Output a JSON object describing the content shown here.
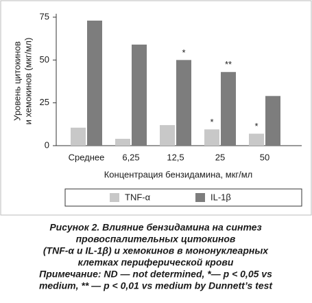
{
  "chart_data": {
    "type": "bar",
    "ylabel": [
      "Уровень цитокинов",
      "и хемокинов (мкг/мл)"
    ],
    "xlabel": "Концентрация бензидамина, мкг/мл",
    "categories": [
      "Среднее",
      "6,25",
      "12,5",
      "25",
      "50"
    ],
    "series": [
      {
        "name": "TNF-α",
        "color": "#c8c8c8",
        "values": [
          10.5,
          4,
          12,
          9.5,
          7
        ],
        "value_labels": [
          null,
          null,
          null,
          "*",
          "*"
        ]
      },
      {
        "name": "IL-1β",
        "color": "#7d7d7d",
        "values": [
          73,
          59,
          50,
          43,
          29
        ],
        "value_labels": [
          null,
          null,
          "*",
          "**",
          null
        ]
      }
    ],
    "ylim": [
      0,
      75
    ],
    "yticks": [
      0,
      25,
      50,
      75
    ]
  },
  "caption": [
    "Рисунок 2. Влияние бензидамина на синтез",
    "провоспалительных цитокинов",
    "(TNF-α и IL-1β) и хемокинов в мононуклеарных",
    "клетках периферической крови",
    "Примечание: ND — not determined, *— p < 0,05 vs",
    "medium, ** — p < 0,01 vs medium by Dunnett’s test"
  ]
}
